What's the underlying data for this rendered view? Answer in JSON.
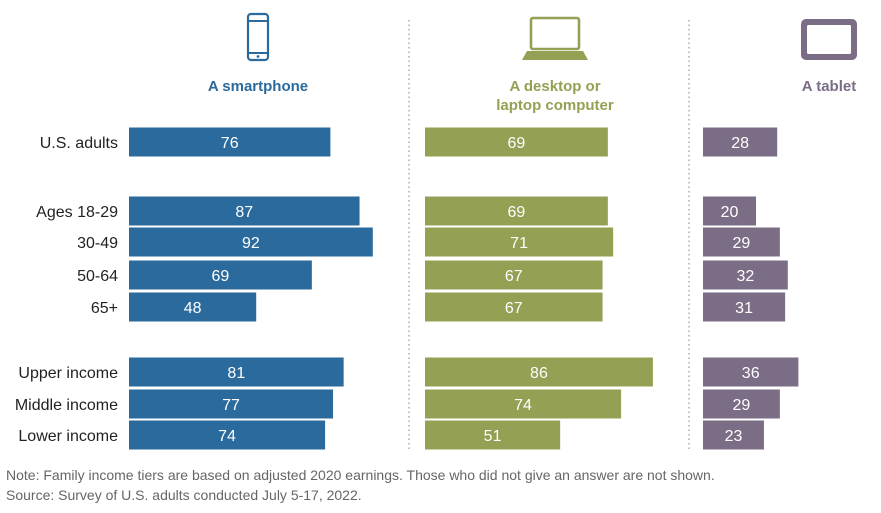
{
  "chart_data": {
    "type": "bar",
    "orientation": "horizontal",
    "title": "",
    "categories": [
      "U.S. adults",
      "Ages 18-29",
      "30-49",
      "50-64",
      "65+",
      "Upper income",
      "Middle income",
      "Lower income"
    ],
    "groups": [
      {
        "categories": [
          "U.S. adults"
        ]
      },
      {
        "categories": [
          "Ages 18-29",
          "30-49",
          "50-64",
          "65+"
        ]
      },
      {
        "categories": [
          "Upper income",
          "Middle income",
          "Lower income"
        ]
      }
    ],
    "series": [
      {
        "name": "A smartphone",
        "icon": "smartphone-icon",
        "color": "#2a6a9c",
        "values": [
          76,
          87,
          92,
          69,
          48,
          81,
          77,
          74
        ]
      },
      {
        "name": "A desktop or laptop computer",
        "icon": "laptop-icon",
        "color": "#94a054",
        "values": [
          69,
          69,
          71,
          67,
          67,
          86,
          74,
          51
        ]
      },
      {
        "name": "A tablet",
        "icon": "tablet-icon",
        "color": "#7b6d86",
        "values": [
          28,
          20,
          29,
          32,
          31,
          36,
          29,
          23
        ]
      }
    ],
    "xlim": [
      0,
      100
    ],
    "grid": false,
    "data_labels": true
  },
  "notes": {
    "note": "Note: Family income tiers are based on adjusted 2020 earnings. Those who did not give an answer are not shown.",
    "source": "Source: Survey of U.S. adults conducted July 5-17, 2022."
  }
}
